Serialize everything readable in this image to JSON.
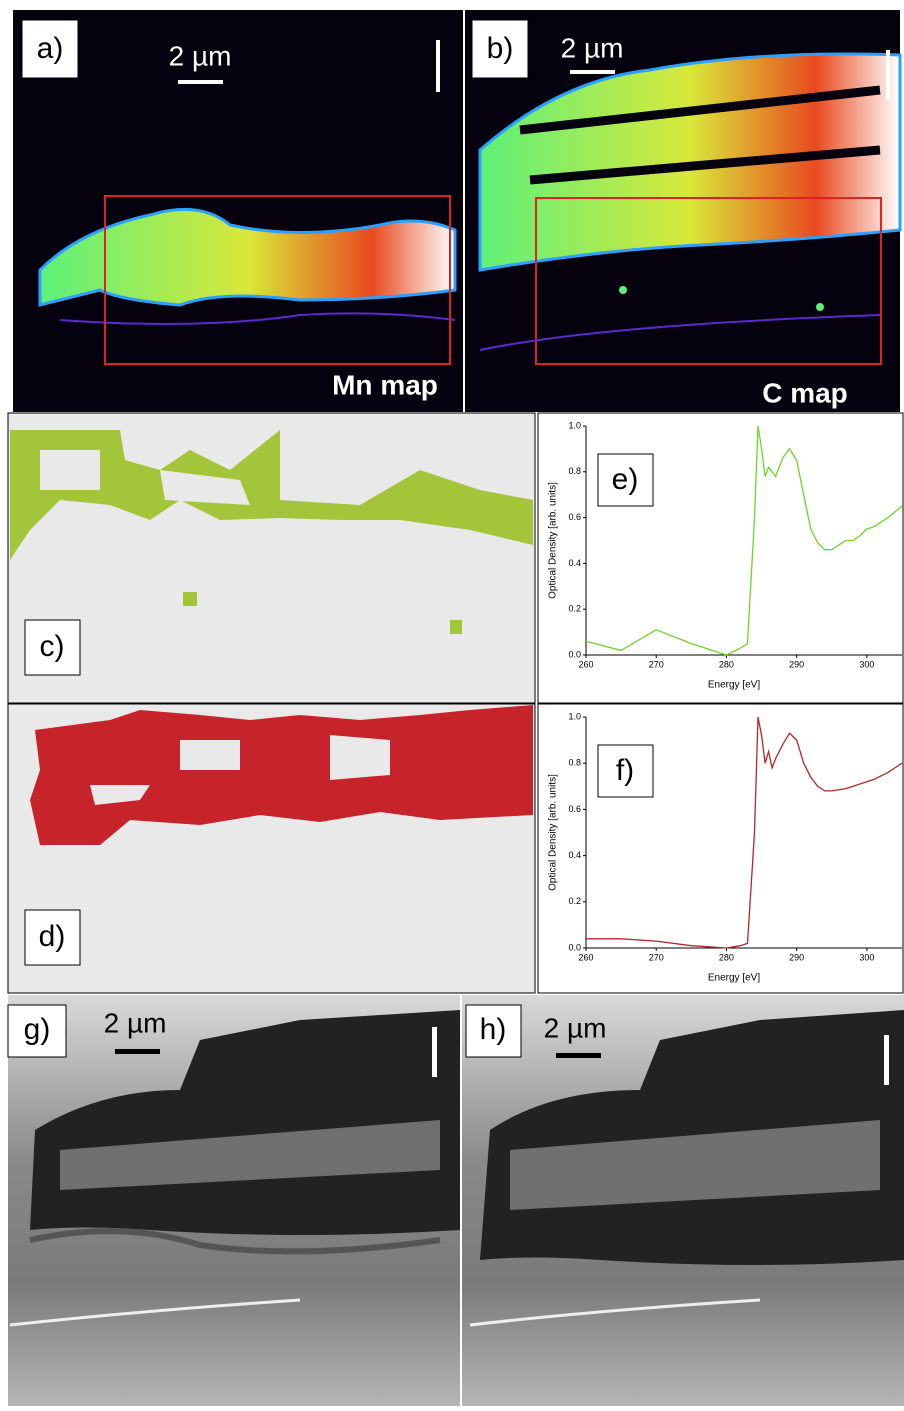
{
  "panels": {
    "a": {
      "label": "a)",
      "scale": "2 µm",
      "map": "Mn map"
    },
    "b": {
      "label": "b)",
      "scale": "2 µm",
      "map": "C map"
    },
    "c": {
      "label": "c)"
    },
    "d": {
      "label": "d)"
    },
    "g": {
      "label": "g)",
      "scale": "2 µm"
    },
    "h": {
      "label": "h)",
      "scale": "2 µm"
    }
  },
  "chart_data": [
    {
      "type": "line",
      "panel_label": "e)",
      "x_label": "Energy [eV]",
      "y_label": "Optical Density [arb. units]",
      "color": "#6fd42a",
      "x": [
        260,
        265,
        270,
        275,
        280,
        282,
        283,
        284,
        284.5,
        285,
        285.5,
        286,
        287,
        288,
        289,
        290,
        291,
        292,
        293,
        294,
        295,
        296,
        297,
        298,
        299,
        300,
        301,
        302,
        303,
        305
      ],
      "values": [
        0.06,
        0.02,
        0.11,
        0.05,
        0.0,
        0.03,
        0.05,
        0.6,
        1.0,
        0.9,
        0.78,
        0.82,
        0.78,
        0.86,
        0.9,
        0.85,
        0.7,
        0.55,
        0.49,
        0.46,
        0.46,
        0.48,
        0.5,
        0.5,
        0.52,
        0.55,
        0.56,
        0.58,
        0.6,
        0.65
      ],
      "xlim": [
        260,
        305
      ],
      "xticks": [
        260,
        270,
        280,
        290,
        300
      ],
      "ylim": [
        0,
        1
      ],
      "yticks": [
        {
          "value": 0,
          "label": "0.0"
        },
        0.2,
        0.4,
        0.6,
        0.8,
        {
          "value": 1,
          "label": "1.0"
        }
      ]
    },
    {
      "type": "line",
      "panel_label": "f)",
      "x_label": "Energy [eV]",
      "y_label": "Optical Density [arb. units]",
      "color": "#b0282a",
      "x": [
        260,
        265,
        270,
        275,
        280,
        282,
        283,
        284,
        284.5,
        285,
        285.5,
        286,
        286.5,
        287,
        288,
        289,
        290,
        291,
        292,
        293,
        294,
        295,
        297,
        299,
        301,
        303,
        305
      ],
      "values": [
        0.04,
        0.04,
        0.03,
        0.01,
        0.0,
        0.01,
        0.02,
        0.5,
        1.0,
        0.92,
        0.8,
        0.85,
        0.78,
        0.82,
        0.88,
        0.93,
        0.9,
        0.8,
        0.74,
        0.7,
        0.68,
        0.68,
        0.69,
        0.71,
        0.73,
        0.76,
        0.8
      ],
      "xlim": [
        260,
        305
      ],
      "xticks": [
        260,
        270,
        280,
        290,
        300
      ],
      "ylim": [
        0,
        1
      ],
      "yticks": [
        {
          "value": 0,
          "label": "0.0"
        },
        0.2,
        0.4,
        0.6,
        0.8,
        {
          "value": 1,
          "label": "1.0"
        }
      ]
    }
  ]
}
